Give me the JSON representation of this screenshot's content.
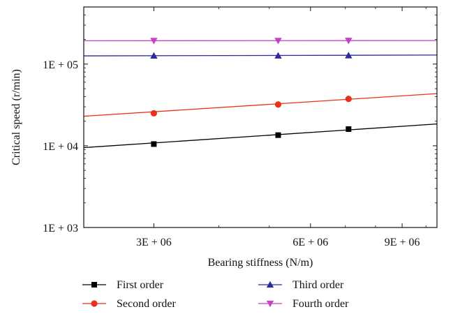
{
  "chart_data": {
    "type": "line",
    "title": "",
    "xlabel": "Bearing stiffness (N/m)",
    "ylabel": "Critical speed (r/min)",
    "xscale": "log",
    "yscale": "log",
    "xlim": [
      2200000,
      10500000
    ],
    "ylim": [
      1000,
      500000
    ],
    "grid": false,
    "legend_position": "bottom",
    "x_ticks": [
      {
        "value": 3000000,
        "label": "3E + 06"
      },
      {
        "value": 6000000,
        "label": "6E + 06"
      },
      {
        "value": 9000000,
        "label": "9E + 06"
      }
    ],
    "y_ticks": [
      {
        "value": 1000,
        "label": "1E + 03"
      },
      {
        "value": 10000,
        "label": "1E + 04"
      },
      {
        "value": 100000,
        "label": "1E + 05"
      }
    ],
    "series": [
      {
        "name": "First order",
        "color": "#000000",
        "marker": "square",
        "line": [
          [
            2200000,
            9500
          ],
          [
            10500000,
            18500
          ]
        ],
        "points": [
          [
            3000000,
            10500
          ],
          [
            5200000,
            13500
          ],
          [
            7100000,
            16000
          ]
        ]
      },
      {
        "name": "Second order",
        "color": "#e8311a",
        "marker": "circle",
        "line": [
          [
            2200000,
            23000
          ],
          [
            10500000,
            43500
          ]
        ],
        "points": [
          [
            3000000,
            25000
          ],
          [
            5200000,
            32000
          ],
          [
            7100000,
            37500
          ]
        ]
      },
      {
        "name": "Third order",
        "color": "#2b2a9b",
        "marker": "triangle-up",
        "line": [
          [
            2200000,
            126000
          ],
          [
            10500000,
            129000
          ]
        ],
        "points": [
          [
            3000000,
            126500
          ],
          [
            5200000,
            127000
          ],
          [
            7100000,
            127500
          ]
        ]
      },
      {
        "name": "Fourth order",
        "color": "#c642c2",
        "marker": "triangle-down",
        "line": [
          [
            2200000,
            193000
          ],
          [
            10500000,
            194000
          ]
        ],
        "points": [
          [
            3000000,
            193000
          ],
          [
            5200000,
            193200
          ],
          [
            7100000,
            193500
          ]
        ]
      }
    ]
  }
}
